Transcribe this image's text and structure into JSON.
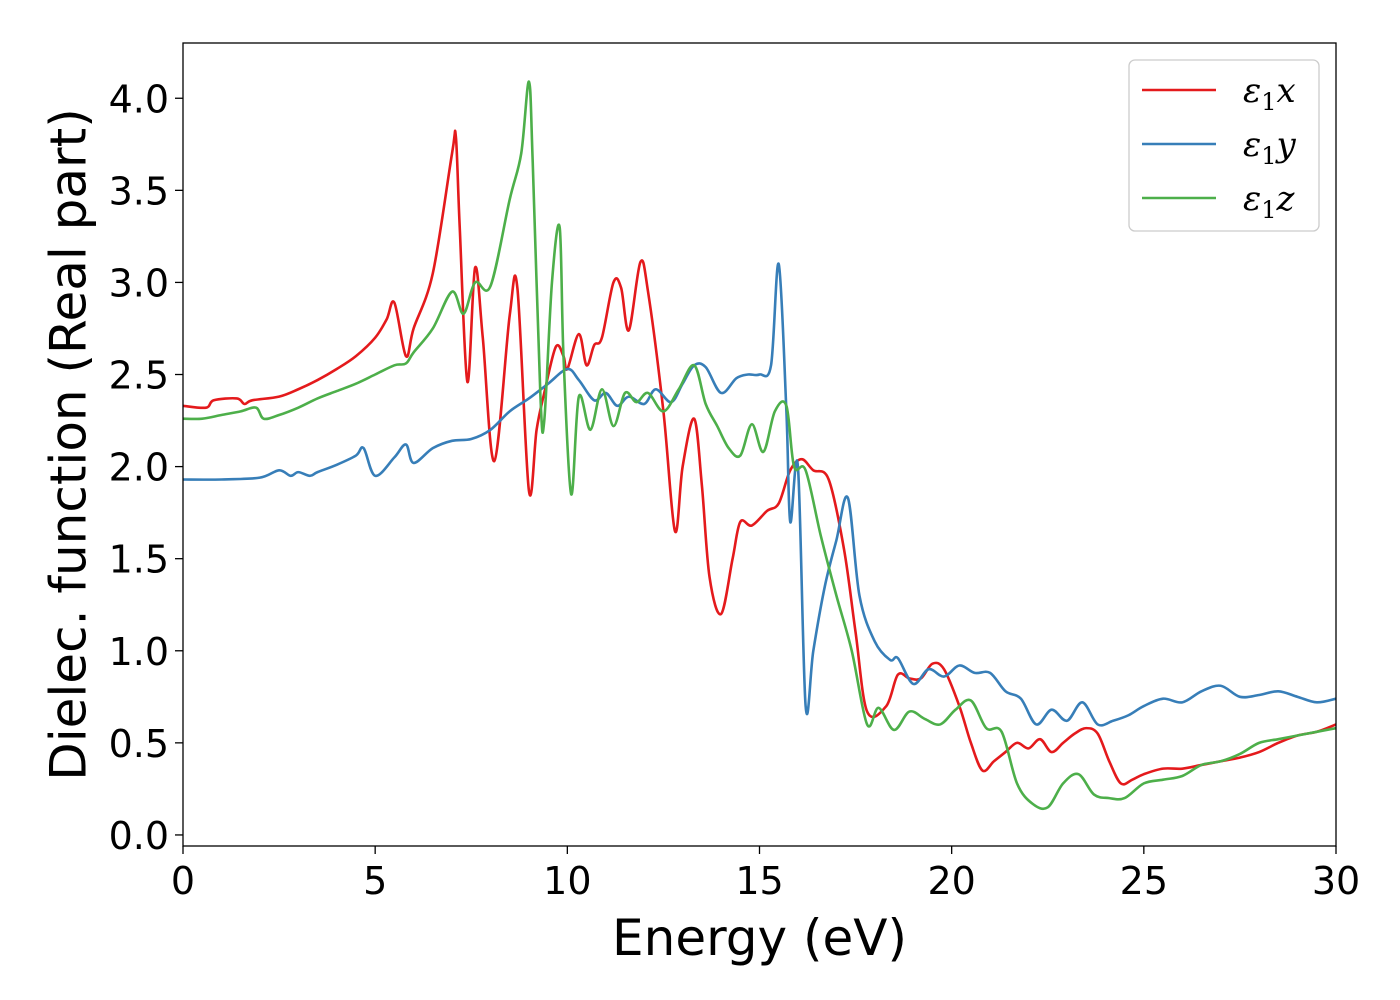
{
  "chart_data": {
    "type": "line",
    "title": "",
    "xlabel": "Energy (eV)",
    "ylabel": "Dielec. function (Real part)",
    "xlim": [
      0,
      30
    ],
    "ylim": [
      -0.06,
      4.3
    ],
    "xticks": [
      0,
      5,
      10,
      15,
      20,
      25,
      30
    ],
    "xtick_labels": [
      "0",
      "5",
      "10",
      "15",
      "20",
      "25",
      "30"
    ],
    "yticks": [
      0.0,
      0.5,
      1.0,
      1.5,
      2.0,
      2.5,
      3.0,
      3.5,
      4.0
    ],
    "ytick_labels": [
      "0.0",
      "0.5",
      "1.0",
      "1.5",
      "2.0",
      "2.5",
      "3.0",
      "3.5",
      "4.0"
    ],
    "grid": false,
    "legend_position": "top-right",
    "series": [
      {
        "name": "ε₁x",
        "legend_base": "ε",
        "legend_sub": "1",
        "legend_var": "x",
        "color": "#e41a1c",
        "x": [
          0,
          0.6,
          0.8,
          1.4,
          1.6,
          1.8,
          2.5,
          3,
          3.5,
          4,
          4.5,
          5,
          5.3,
          5.5,
          5.8,
          6,
          6.5,
          7,
          7.1,
          7.2,
          7.4,
          7.6,
          7.8,
          8.1,
          8.5,
          8.7,
          9,
          9.2,
          9.4,
          9.7,
          9.9,
          10,
          10.3,
          10.5,
          10.7,
          10.9,
          11.2,
          11.4,
          11.6,
          11.9,
          12.1,
          12.5,
          12.8,
          13,
          13.3,
          13.5,
          13.7,
          14,
          14.3,
          14.5,
          14.8,
          15.2,
          15.5,
          15.8,
          16.1,
          16.4,
          16.8,
          17.2,
          17.5,
          17.8,
          18.3,
          18.6,
          18.9,
          19.2,
          19.5,
          19.8,
          20.2,
          20.5,
          20.8,
          21.1,
          21.4,
          21.7,
          22,
          22.3,
          22.6,
          22.9,
          23.2,
          23.5,
          23.8,
          24.1,
          24.4,
          24.7,
          25,
          25.5,
          26,
          26.5,
          27,
          27.5,
          28,
          28.5,
          29,
          29.5,
          30
        ],
        "values": [
          2.33,
          2.32,
          2.36,
          2.37,
          2.34,
          2.36,
          2.38,
          2.42,
          2.47,
          2.53,
          2.6,
          2.7,
          2.8,
          2.89,
          2.6,
          2.75,
          3.05,
          3.7,
          3.79,
          3.3,
          2.46,
          3.08,
          2.7,
          2.03,
          2.82,
          2.97,
          1.87,
          2.2,
          2.4,
          2.65,
          2.6,
          2.53,
          2.72,
          2.55,
          2.66,
          2.7,
          3.0,
          2.97,
          2.74,
          3.11,
          2.95,
          2.3,
          1.65,
          2.0,
          2.26,
          1.9,
          1.4,
          1.2,
          1.5,
          1.7,
          1.68,
          1.76,
          1.8,
          1.98,
          2.04,
          1.98,
          1.93,
          1.55,
          1.1,
          0.67,
          0.7,
          0.87,
          0.85,
          0.85,
          0.93,
          0.9,
          0.7,
          0.5,
          0.35,
          0.4,
          0.45,
          0.5,
          0.47,
          0.52,
          0.45,
          0.5,
          0.55,
          0.58,
          0.55,
          0.4,
          0.28,
          0.3,
          0.33,
          0.36,
          0.36,
          0.38,
          0.4,
          0.42,
          0.45,
          0.5,
          0.54,
          0.56,
          0.6
        ]
      },
      {
        "name": "ε₁y",
        "legend_base": "ε",
        "legend_sub": "1",
        "legend_var": "y",
        "color": "#377eb8",
        "x": [
          0,
          1,
          2,
          2.5,
          2.8,
          3,
          3.3,
          3.5,
          4,
          4.5,
          4.7,
          5,
          5.5,
          5.8,
          6,
          6.5,
          7,
          7.5,
          8,
          8.5,
          9,
          9.5,
          10,
          10.3,
          10.7,
          11,
          11.3,
          11.6,
          12,
          12.3,
          12.7,
          13,
          13.3,
          13.6,
          14,
          14.4,
          14.7,
          15,
          15.3,
          15.5,
          15.7,
          15.8,
          16,
          16.2,
          16.4,
          16.7,
          17,
          17.3,
          17.6,
          18,
          18.4,
          18.6,
          19,
          19.4,
          19.8,
          20.2,
          20.6,
          21,
          21.4,
          21.8,
          22.2,
          22.6,
          23,
          23.4,
          23.8,
          24.2,
          24.6,
          25,
          25.5,
          26,
          26.5,
          27,
          27.5,
          28,
          28.5,
          29,
          29.5,
          30
        ],
        "values": [
          1.93,
          1.93,
          1.94,
          1.98,
          1.95,
          1.97,
          1.95,
          1.97,
          2.01,
          2.06,
          2.1,
          1.95,
          2.05,
          2.12,
          2.02,
          2.1,
          2.14,
          2.15,
          2.2,
          2.3,
          2.37,
          2.45,
          2.53,
          2.47,
          2.36,
          2.4,
          2.33,
          2.38,
          2.34,
          2.42,
          2.35,
          2.45,
          2.55,
          2.54,
          2.4,
          2.48,
          2.5,
          2.5,
          2.55,
          3.1,
          2.3,
          1.7,
          2.0,
          0.7,
          1.0,
          1.35,
          1.6,
          1.83,
          1.3,
          1.05,
          0.95,
          0.96,
          0.82,
          0.9,
          0.86,
          0.92,
          0.88,
          0.88,
          0.78,
          0.74,
          0.6,
          0.68,
          0.62,
          0.72,
          0.6,
          0.62,
          0.65,
          0.7,
          0.74,
          0.72,
          0.78,
          0.81,
          0.75,
          0.76,
          0.78,
          0.75,
          0.72,
          0.74
        ]
      },
      {
        "name": "ε₁z",
        "legend_base": "ε",
        "legend_sub": "1",
        "legend_var": "z",
        "color": "#4daf4a",
        "x": [
          0,
          0.5,
          1,
          1.5,
          1.9,
          2.1,
          2.5,
          3,
          3.5,
          4,
          4.5,
          5,
          5.5,
          5.8,
          6,
          6.5,
          7,
          7.3,
          7.6,
          8,
          8.5,
          8.8,
          9.0,
          9.1,
          9.3,
          9.4,
          9.6,
          9.8,
          9.9,
          10.1,
          10.3,
          10.6,
          10.9,
          11.2,
          11.5,
          11.8,
          12.1,
          12.5,
          12.9,
          13.3,
          13.6,
          13.9,
          14.2,
          14.5,
          14.8,
          15.1,
          15.4,
          15.7,
          15.9,
          16.2,
          16.6,
          17,
          17.4,
          17.8,
          18.1,
          18.5,
          18.9,
          19.3,
          19.7,
          20.1,
          20.5,
          20.9,
          21.3,
          21.7,
          22.1,
          22.5,
          22.9,
          23.3,
          23.7,
          24.1,
          24.5,
          25,
          25.5,
          26,
          26.5,
          27,
          27.5,
          28,
          28.5,
          29,
          29.5,
          30
        ],
        "values": [
          2.26,
          2.26,
          2.28,
          2.3,
          2.32,
          2.26,
          2.28,
          2.32,
          2.37,
          2.41,
          2.45,
          2.5,
          2.55,
          2.56,
          2.62,
          2.75,
          2.95,
          2.83,
          3.0,
          2.98,
          3.45,
          3.7,
          4.09,
          3.65,
          2.38,
          2.25,
          3.0,
          3.3,
          2.6,
          1.85,
          2.38,
          2.2,
          2.42,
          2.22,
          2.4,
          2.35,
          2.4,
          2.3,
          2.42,
          2.55,
          2.34,
          2.22,
          2.1,
          2.06,
          2.23,
          2.08,
          2.3,
          2.33,
          2.0,
          1.98,
          1.62,
          1.3,
          1.0,
          0.6,
          0.69,
          0.57,
          0.67,
          0.63,
          0.6,
          0.68,
          0.73,
          0.58,
          0.56,
          0.28,
          0.17,
          0.15,
          0.28,
          0.33,
          0.22,
          0.2,
          0.2,
          0.28,
          0.3,
          0.32,
          0.38,
          0.4,
          0.44,
          0.5,
          0.52,
          0.54,
          0.56,
          0.58
        ]
      }
    ]
  }
}
